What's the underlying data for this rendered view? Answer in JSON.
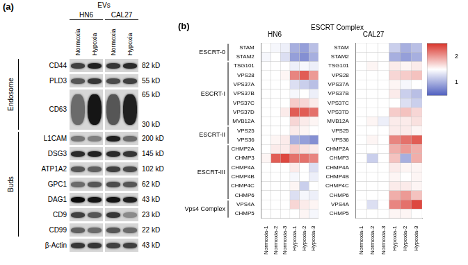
{
  "panel_a": {
    "label": "(a)",
    "header": "EVs",
    "lanes": [
      {
        "cell_line": "HN6",
        "conditions": [
          "Normoxia",
          "Hypoxia"
        ]
      },
      {
        "cell_line": "CAL27",
        "conditions": [
          "Normoxia",
          "Hypoxia"
        ]
      }
    ],
    "groups": [
      {
        "name": "Endosome",
        "rows": [
          "CD44",
          "PLD3",
          "CD63"
        ]
      },
      {
        "name": "Buds",
        "rows": [
          "L1CAM",
          "DSG3",
          "ATP1A2",
          "GPC1",
          "DAG1",
          "CD9",
          "CD99"
        ]
      }
    ],
    "rows": [
      {
        "protein": "CD44",
        "sizes": [
          "82 kD"
        ],
        "band_intensity": [
          0.7,
          0.85,
          0.75,
          0.8
        ]
      },
      {
        "protein": "PLD3",
        "sizes": [
          "55 kD"
        ],
        "band_intensity": [
          0.6,
          0.75,
          0.65,
          0.7
        ]
      },
      {
        "protein": "CD63",
        "sizes": [
          "65 kD",
          "30 kD"
        ],
        "band_intensity": [
          0.5,
          0.9,
          0.6,
          0.85
        ]
      },
      {
        "protein": "L1CAM",
        "sizes": [
          "200 kD"
        ],
        "band_intensity": [
          0.45,
          0.4,
          0.85,
          0.5
        ]
      },
      {
        "protein": "DSG3",
        "sizes": [
          "145 kD"
        ],
        "band_intensity": [
          0.8,
          0.85,
          0.8,
          0.75
        ]
      },
      {
        "protein": "ATP1A2",
        "sizes": [
          "102 kD"
        ],
        "band_intensity": [
          0.6,
          0.55,
          0.7,
          0.65
        ]
      },
      {
        "protein": "GPC1",
        "sizes": [
          "62 kD"
        ],
        "band_intensity": [
          0.5,
          0.6,
          0.65,
          0.6
        ]
      },
      {
        "protein": "DAG1",
        "sizes": [
          "43 kD"
        ],
        "band_intensity": [
          0.95,
          0.9,
          0.9,
          0.85
        ]
      },
      {
        "protein": "CD9",
        "sizes": [
          "23 kD"
        ],
        "band_intensity": [
          0.7,
          0.6,
          0.75,
          0.35
        ]
      },
      {
        "protein": "CD99",
        "sizes": [
          "22 kD"
        ],
        "band_intensity": [
          0.55,
          0.5,
          0.6,
          0.5
        ]
      },
      {
        "protein": "β-Actin",
        "sizes": [
          "43 kD"
        ],
        "band_intensity": [
          0.75,
          0.75,
          0.7,
          0.7
        ]
      }
    ]
  },
  "panel_b": {
    "label": "(b)",
    "title": "ESCRT Complex",
    "complexes": [
      {
        "name": "ESCRT-0",
        "rows": [
          "STAM",
          "STAM2"
        ]
      },
      {
        "name": "ESCRT-I",
        "rows": [
          "TSG101",
          "VPS28",
          "VPS37A",
          "VPS37B",
          "VPS37C",
          "VPS37D",
          "MVB12A"
        ]
      },
      {
        "name": "ESCRT-II",
        "rows": [
          "VPS25",
          "VPS36"
        ]
      },
      {
        "name": "ESCRT-III",
        "rows": [
          "CHMP2A",
          "CHMP3",
          "CHMP4A",
          "CHMP4B",
          "CHMP4C",
          "CHMP6"
        ]
      },
      {
        "name": "Vps4 Complex",
        "rows": [
          "VPS4A",
          "CHMP5"
        ]
      }
    ],
    "colorbar": {
      "range": [
        0.5,
        2.5
      ],
      "ticks": [
        1,
        2
      ],
      "colors": [
        "#4f5fbf",
        "#ffffff",
        "#d9342b"
      ]
    }
  },
  "chart_data": [
    {
      "type": "heatmap",
      "title": "HN6",
      "x": [
        "Normoxia-1",
        "Normoxia-2",
        "Normoxia-3",
        "Hypoxia-1",
        "Hypoxia-2",
        "Hypoxia-3"
      ],
      "y": [
        "STAM",
        "STAM2",
        "TSG101",
        "VPS28",
        "VPS37A",
        "VPS37B",
        "VPS37C",
        "VPS37D",
        "MVB12A",
        "VPS25",
        "VPS36",
        "CHMP2A",
        "CHMP3",
        "CHMP4A",
        "CHMP4B",
        "CHMP4C",
        "CHMP6",
        "VPS4A",
        "CHMP5"
      ],
      "cells": [
        [
          1.5,
          1.45,
          1.4,
          1.0,
          0.9,
          1.1
        ],
        [
          1.45,
          1.5,
          1.3,
          0.9,
          0.8,
          1.0
        ],
        [
          1.5,
          1.5,
          1.5,
          1.4,
          1.45,
          1.4
        ],
        [
          1.5,
          1.5,
          1.55,
          2.1,
          2.3,
          2.0
        ],
        [
          1.5,
          1.5,
          1.5,
          1.3,
          1.2,
          1.1
        ],
        [
          1.5,
          1.5,
          1.5,
          1.45,
          1.5,
          1.4
        ],
        [
          1.5,
          1.5,
          1.5,
          1.75,
          1.7,
          1.6
        ],
        [
          1.5,
          1.5,
          1.6,
          2.3,
          2.3,
          2.2
        ],
        [
          1.5,
          1.5,
          1.5,
          1.7,
          1.6,
          1.55
        ],
        [
          1.5,
          1.5,
          1.5,
          1.6,
          1.55,
          1.5
        ],
        [
          1.5,
          1.55,
          1.6,
          1.0,
          0.9,
          0.8
        ],
        [
          1.5,
          1.6,
          1.6,
          1.75,
          1.65,
          1.6
        ],
        [
          1.55,
          2.3,
          2.4,
          2.2,
          2.2,
          2.1
        ],
        [
          1.5,
          1.5,
          1.5,
          1.6,
          1.5,
          1.3
        ],
        [
          1.5,
          1.5,
          1.5,
          1.45,
          1.5,
          1.4
        ],
        [
          1.5,
          1.5,
          1.5,
          1.55,
          1.2,
          1.5
        ],
        [
          1.5,
          1.5,
          1.5,
          1.3,
          1.45,
          1.4
        ],
        [
          1.5,
          1.5,
          1.5,
          1.7,
          1.6,
          1.55
        ],
        [
          1.5,
          1.5,
          1.5,
          1.5,
          1.55,
          1.45
        ]
      ]
    },
    {
      "type": "heatmap",
      "title": "CAL27",
      "x": [
        "Normoxia-1",
        "Normoxia-2",
        "Normoxia-3",
        "Hypoxia-1",
        "Hypoxia-2",
        "Hypoxia-3"
      ],
      "y": [
        "STAM",
        "STAM2",
        "TSG101",
        "VPS28",
        "VPS37A",
        "VPS37B",
        "VPS37C",
        "VPS37D",
        "MVB12A",
        "VPS25",
        "VPS36",
        "CHMP2A",
        "CHMP3",
        "CHMP4A",
        "CHMP4B",
        "CHMP4C",
        "CHMP6",
        "VPS4A",
        "CHMP5"
      ],
      "cells": [
        [
          1.5,
          1.5,
          1.5,
          1.2,
          1.0,
          1.1
        ],
        [
          1.5,
          1.5,
          1.5,
          1.0,
          0.9,
          1.0
        ],
        [
          1.5,
          1.55,
          1.5,
          1.6,
          1.55,
          1.6
        ],
        [
          1.5,
          1.5,
          1.5,
          1.7,
          1.75,
          1.8
        ],
        [
          1.5,
          1.5,
          1.5,
          1.55,
          1.45,
          1.5
        ],
        [
          1.5,
          1.5,
          1.5,
          1.6,
          1.2,
          1.1
        ],
        [
          1.5,
          1.5,
          1.5,
          1.5,
          1.3,
          1.2
        ],
        [
          1.5,
          1.5,
          1.5,
          1.75,
          1.8,
          1.7
        ],
        [
          1.5,
          1.55,
          1.4,
          1.6,
          1.6,
          1.65
        ],
        [
          1.5,
          1.5,
          1.5,
          1.6,
          1.6,
          1.55
        ],
        [
          1.5,
          1.55,
          1.5,
          2.1,
          2.2,
          2.3
        ],
        [
          1.5,
          1.5,
          1.5,
          1.9,
          2.0,
          1.9
        ],
        [
          1.5,
          1.2,
          1.5,
          1.8,
          1.0,
          1.9
        ],
        [
          1.5,
          1.5,
          1.5,
          1.6,
          1.55,
          1.55
        ],
        [
          1.5,
          1.5,
          1.5,
          1.55,
          1.5,
          1.55
        ],
        [
          1.5,
          1.5,
          1.5,
          1.6,
          1.6,
          1.55
        ],
        [
          1.5,
          1.5,
          1.5,
          1.9,
          2.0,
          1.8
        ],
        [
          1.5,
          1.3,
          1.5,
          2.1,
          2.2,
          2.4
        ],
        [
          1.5,
          1.5,
          1.5,
          1.55,
          1.55,
          1.5
        ]
      ]
    }
  ]
}
